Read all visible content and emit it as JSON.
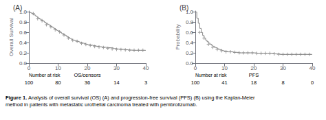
{
  "chart_data": [
    {
      "type": "line",
      "title": "(A)",
      "xlabel": "OS/censors",
      "ylabel": "Overall Survival",
      "xlim": [
        0,
        40
      ],
      "xticks": [
        0,
        10,
        20,
        30,
        40
      ],
      "ylim": [
        0.0,
        1.02
      ],
      "yticks": [
        {
          "value": 0,
          "label": "0.0"
        },
        0.2,
        0.4,
        0.6,
        0.8,
        {
          "value": 1,
          "label": "1.0"
        }
      ],
      "grid": false,
      "series": [
        {
          "type": "step",
          "color": "#888888",
          "x": [
            0,
            0.3,
            0.7,
            1.2,
            1.8,
            2.3,
            2.8,
            3.2,
            3.7,
            4.2,
            4.8,
            5.3,
            5.8,
            6.4,
            6.9,
            7.4,
            7.9,
            8.5,
            9.0,
            9.5,
            10.1,
            10.7,
            11.2,
            11.8,
            12.3,
            12.9,
            13.4,
            14.0,
            14.6,
            15.1,
            15.7,
            16.2,
            16.8,
            17.3,
            17.9,
            18.4,
            19.0,
            19.5,
            20.1,
            21.0,
            22.0,
            23.0,
            24.0,
            25.0,
            26.0,
            27.0,
            28.0,
            29.0,
            30.2,
            31.0,
            32.0,
            33.0,
            34.0,
            35.0,
            36.0,
            37.0,
            38.0,
            39.0,
            40.0
          ],
          "values": [
            1.0,
            0.99,
            0.98,
            0.96,
            0.94,
            0.92,
            0.9,
            0.88,
            0.86,
            0.84,
            0.82,
            0.8,
            0.78,
            0.76,
            0.74,
            0.72,
            0.7,
            0.68,
            0.66,
            0.64,
            0.62,
            0.6,
            0.58,
            0.56,
            0.54,
            0.52,
            0.5,
            0.48,
            0.46,
            0.45,
            0.44,
            0.43,
            0.42,
            0.41,
            0.4,
            0.39,
            0.38,
            0.37,
            0.36,
            0.35,
            0.34,
            0.33,
            0.32,
            0.31,
            0.305,
            0.3,
            0.295,
            0.285,
            0.275,
            0.27,
            0.265,
            0.26,
            0.255,
            0.25,
            0.25,
            0.25,
            0.25,
            0.25,
            0.25
          ]
        },
        {
          "type": "scatter",
          "marker": "+",
          "color": "#888888",
          "x": [
            1.5,
            3.0,
            4.5,
            6.0,
            7.5,
            9.0,
            10.5,
            12.0,
            13.5,
            15.0,
            16.5,
            18.0,
            19.5,
            21.0,
            22.5,
            24.0,
            25.5,
            27.0,
            28.5,
            30.0,
            31.5,
            33.0,
            34.5,
            36.0,
            37.5,
            39.0
          ],
          "values": [
            0.97,
            0.87,
            0.83,
            0.75,
            0.71,
            0.65,
            0.61,
            0.55,
            0.49,
            0.445,
            0.425,
            0.385,
            0.365,
            0.345,
            0.325,
            0.315,
            0.305,
            0.29,
            0.28,
            0.27,
            0.265,
            0.258,
            0.252,
            0.25,
            0.25,
            0.25
          ]
        }
      ],
      "at_risk": {
        "label": "Number at risk",
        "x": [
          0,
          10,
          20,
          30,
          40
        ],
        "values": [
          100,
          80,
          36,
          14,
          3
        ]
      }
    },
    {
      "type": "line",
      "title": "(B)",
      "xlabel": "PFS",
      "ylabel": "Probability",
      "xlim": [
        0,
        40
      ],
      "xticks": [
        0,
        10,
        20,
        30,
        40
      ],
      "ylim": [
        0.0,
        1.02
      ],
      "yticks": [
        {
          "value": 0,
          "label": "0.0"
        },
        0.2,
        0.4,
        0.6,
        0.8,
        {
          "value": 1,
          "label": "1.0"
        }
      ],
      "grid": false,
      "series": [
        {
          "type": "step",
          "color": "#888888",
          "x": [
            0,
            0.5,
            1.0,
            1.5,
            2.0,
            2.5,
            3.0,
            3.5,
            4.0,
            4.5,
            5.0,
            5.5,
            6.0,
            6.5,
            7.0,
            7.5,
            8.0,
            8.5,
            9.0,
            9.5,
            10.0,
            11.0,
            12.0,
            13.0,
            14.0,
            15.0,
            16.0,
            17.0,
            18.0,
            19.0,
            20.0,
            21.0,
            22.0,
            23.0,
            24.0,
            25.0,
            26.0,
            27.0,
            28.0,
            29.0,
            30.0,
            31.5,
            32.0,
            33.0,
            34.0,
            35.0,
            36.0,
            37.0,
            38.0,
            39.0,
            40.0
          ],
          "values": [
            1.0,
            0.88,
            0.78,
            0.68,
            0.6,
            0.54,
            0.49,
            0.45,
            0.42,
            0.39,
            0.37,
            0.35,
            0.33,
            0.31,
            0.3,
            0.28,
            0.27,
            0.26,
            0.25,
            0.24,
            0.23,
            0.22,
            0.22,
            0.21,
            0.21,
            0.2,
            0.2,
            0.2,
            0.2,
            0.2,
            0.2,
            0.19,
            0.19,
            0.19,
            0.19,
            0.19,
            0.19,
            0.18,
            0.18,
            0.17,
            0.17,
            0.17,
            0.17,
            0.17,
            0.17,
            0.17,
            0.17,
            0.17,
            0.17,
            0.17,
            0.17
          ]
        },
        {
          "type": "scatter",
          "marker": "+",
          "color": "#888888",
          "x": [
            1.5,
            3.0,
            4.5,
            6.0,
            7.5,
            9.0,
            10.5,
            12.0,
            13.5,
            15.0,
            16.5,
            18.0,
            19.5,
            21.0,
            22.5,
            24.0,
            25.5,
            27.0,
            28.5,
            30.0,
            31.5,
            33.0,
            34.5,
            36.0,
            37.5,
            39.0
          ],
          "values": [
            0.6,
            0.49,
            0.37,
            0.31,
            0.27,
            0.24,
            0.22,
            0.22,
            0.21,
            0.2,
            0.2,
            0.2,
            0.2,
            0.19,
            0.19,
            0.19,
            0.19,
            0.18,
            0.17,
            0.17,
            0.17,
            0.17,
            0.17,
            0.17,
            0.17,
            0.17
          ]
        }
      ],
      "at_risk": {
        "label": "Number at risk",
        "x": [
          0,
          10,
          20,
          30,
          40
        ],
        "values": [
          100,
          41,
          18,
          8,
          0
        ]
      }
    }
  ],
  "caption": {
    "bold": "Figure 1.",
    "text": "Analysis of overall survival (OS) (A) and progression-free survival (PFS) (B) using the Kaplan-Meier method in patients with metastatic urothelial carcinoma treated with pembrolizumab."
  }
}
